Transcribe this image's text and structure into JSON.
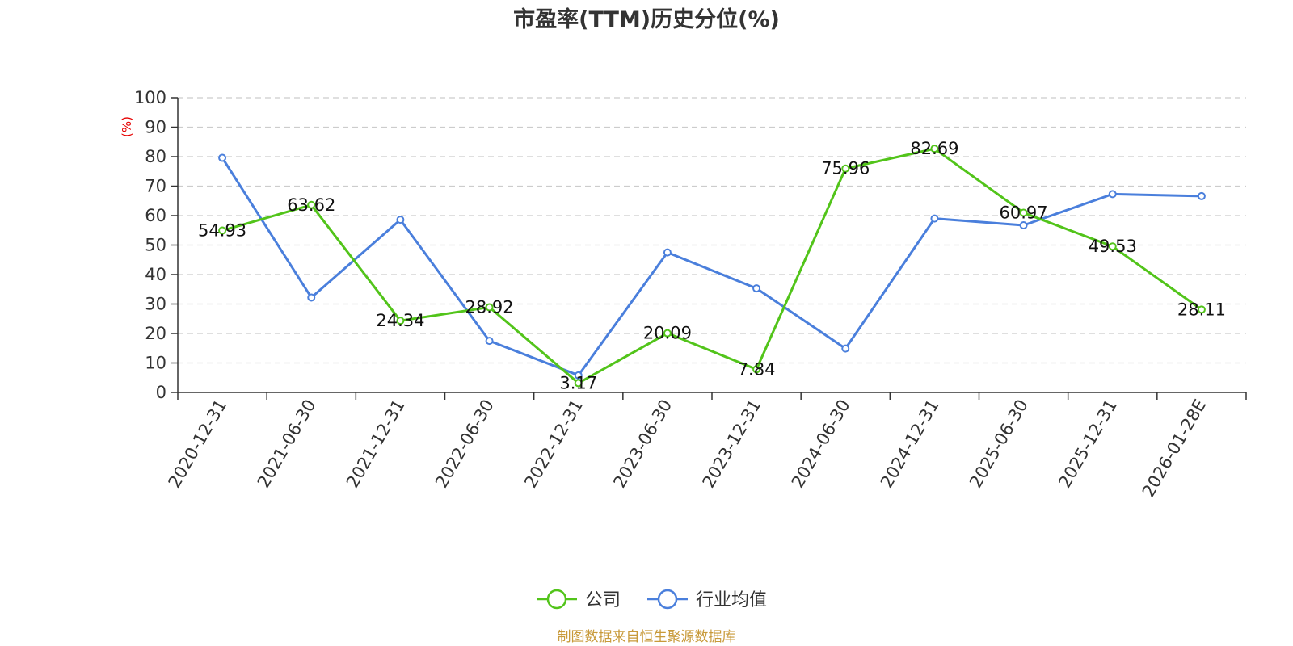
{
  "chart_data": {
    "type": "line",
    "title": "市盈率(TTM)历史分位(%)",
    "ylabel": "(%)",
    "xlabel": "",
    "ylim": [
      0,
      100
    ],
    "yticks": [
      0,
      10,
      20,
      30,
      40,
      50,
      60,
      70,
      80,
      90,
      100
    ],
    "grid": true,
    "legend_position": "bottom-center",
    "categories": [
      "2020-12-31",
      "2021-06-30",
      "2021-12-31",
      "2022-06-30",
      "2022-12-31",
      "2023-06-30",
      "2023-12-31",
      "2024-06-30",
      "2024-12-31",
      "2025-06-30",
      "2025-12-31",
      "2026-01-28E"
    ],
    "series": [
      {
        "name": "公司",
        "color": "#52c41a",
        "show_labels": true,
        "values": [
          54.93,
          63.62,
          24.34,
          28.92,
          3.17,
          20.09,
          7.84,
          75.96,
          82.69,
          60.97,
          49.53,
          28.11
        ],
        "labels": [
          "54.93",
          "63.62",
          "24.34",
          "28.92",
          "3.17",
          "20.09",
          "7.84",
          "75.96",
          "82.69",
          "60.97",
          "49.53",
          "28.11"
        ]
      },
      {
        "name": "行业均值",
        "color": "#4a7fdc",
        "show_labels": false,
        "values": [
          79.6,
          32.2,
          58.6,
          17.5,
          5.8,
          47.5,
          35.3,
          14.9,
          59.0,
          56.7,
          67.3,
          66.6
        ]
      }
    ],
    "source": "制图数据来自恒生聚源数据库"
  }
}
